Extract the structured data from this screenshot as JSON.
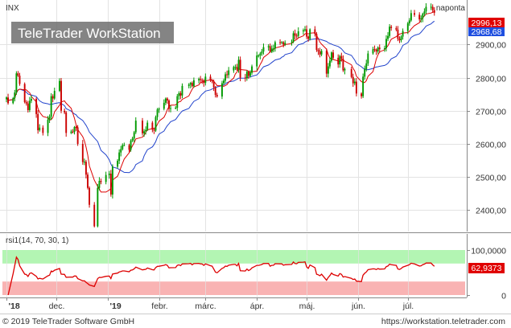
{
  "header": {
    "symbol": "INX",
    "interval": "naponta",
    "watermark_text": "TeleTrader WorkStation"
  },
  "footer": {
    "copyright": "© 2019 TeleTrader Software GmbH",
    "url": "https://workstation.teletrader.com"
  },
  "colors": {
    "up_candle": "#009900",
    "down_candle": "#cc0000",
    "ma_fast": "#dd0000",
    "ma_slow": "#2244cc",
    "rsi_line": "#dd0000",
    "rsi_overbought_band": "#b3f5b3",
    "rsi_oversold_band": "#f9b3b3",
    "last_price_badge": "#e00000",
    "slow_ma_badge": "#1f4fe0",
    "grid": "#e3e3e3"
  },
  "chart_data": [
    {
      "type": "candlestick",
      "symbol": "INX",
      "period": "naponta",
      "y_axis_ticks": [
        "2400,00",
        "2500,00",
        "2600,00",
        "2700,00",
        "2800,00",
        "2900,00"
      ],
      "y_tick_values": [
        2400,
        2500,
        2600,
        2700,
        2800,
        2900
      ],
      "ylim": [
        2340,
        3020
      ],
      "x_tick_labels": [
        "'18",
        "dec.",
        "'19",
        "febr.",
        "márc.",
        "ápr.",
        "máj.",
        "jún.",
        "júl."
      ],
      "x_tick_dates": [
        "2018-11-01",
        "2018-12-01",
        "2019-01-01",
        "2019-02-01",
        "2019-03-01",
        "2019-04-01",
        "2019-05-01",
        "2019-06-01",
        "2019-07-01"
      ],
      "x_range": [
        "2018-11-01",
        "2019-07-21"
      ],
      "overlays": [
        "moving average (fast)",
        "moving average (slow)"
      ],
      "last_value_badges": [
        {
          "text": "2996,13",
          "value": 2996.13,
          "kind": "last price"
        },
        {
          "text": "2968,68",
          "value": 2968.68,
          "kind": "slow average"
        }
      ],
      "grid": true,
      "close_series": [
        [
          "2018-11-01",
          2740
        ],
        [
          "2018-11-02",
          2723
        ],
        [
          "2018-11-05",
          2738
        ],
        [
          "2018-11-06",
          2755
        ],
        [
          "2018-11-07",
          2813
        ],
        [
          "2018-11-08",
          2806
        ],
        [
          "2018-11-09",
          2781
        ],
        [
          "2018-11-12",
          2726
        ],
        [
          "2018-11-13",
          2722
        ],
        [
          "2018-11-14",
          2702
        ],
        [
          "2018-11-15",
          2730
        ],
        [
          "2018-11-16",
          2736
        ],
        [
          "2018-11-19",
          2690
        ],
        [
          "2018-11-20",
          2641
        ],
        [
          "2018-11-21",
          2649
        ],
        [
          "2018-11-23",
          2633
        ],
        [
          "2018-11-26",
          2673
        ],
        [
          "2018-11-27",
          2682
        ],
        [
          "2018-11-28",
          2744
        ],
        [
          "2018-11-29",
          2737
        ],
        [
          "2018-11-30",
          2760
        ],
        [
          "2018-12-03",
          2790
        ],
        [
          "2018-12-04",
          2700
        ],
        [
          "2018-12-06",
          2695
        ],
        [
          "2018-12-07",
          2633
        ],
        [
          "2018-12-10",
          2637
        ],
        [
          "2018-12-11",
          2636
        ],
        [
          "2018-12-12",
          2651
        ],
        [
          "2018-12-13",
          2650
        ],
        [
          "2018-12-14",
          2600
        ],
        [
          "2018-12-17",
          2545
        ],
        [
          "2018-12-18",
          2546
        ],
        [
          "2018-12-19",
          2507
        ],
        [
          "2018-12-20",
          2467
        ],
        [
          "2018-12-21",
          2416
        ],
        [
          "2018-12-24",
          2351
        ],
        [
          "2018-12-26",
          2467
        ],
        [
          "2018-12-27",
          2488
        ],
        [
          "2018-12-28",
          2485
        ],
        [
          "2018-12-31",
          2506
        ],
        [
          "2019-01-02",
          2510
        ],
        [
          "2019-01-03",
          2447
        ],
        [
          "2019-01-04",
          2531
        ],
        [
          "2019-01-07",
          2549
        ],
        [
          "2019-01-08",
          2574
        ],
        [
          "2019-01-09",
          2584
        ],
        [
          "2019-01-10",
          2596
        ],
        [
          "2019-01-11",
          2596
        ],
        [
          "2019-01-14",
          2582
        ],
        [
          "2019-01-15",
          2610
        ],
        [
          "2019-01-16",
          2616
        ],
        [
          "2019-01-17",
          2635
        ],
        [
          "2019-01-18",
          2670
        ],
        [
          "2019-01-22",
          2632
        ],
        [
          "2019-01-23",
          2638
        ],
        [
          "2019-01-24",
          2642
        ],
        [
          "2019-01-25",
          2664
        ],
        [
          "2019-01-28",
          2643
        ],
        [
          "2019-01-29",
          2640
        ],
        [
          "2019-01-30",
          2681
        ],
        [
          "2019-01-31",
          2704
        ],
        [
          "2019-02-01",
          2706
        ],
        [
          "2019-02-04",
          2724
        ],
        [
          "2019-02-05",
          2737
        ],
        [
          "2019-02-06",
          2731
        ],
        [
          "2019-02-07",
          2706
        ],
        [
          "2019-02-08",
          2708
        ],
        [
          "2019-02-11",
          2709
        ],
        [
          "2019-02-12",
          2744
        ],
        [
          "2019-02-13",
          2753
        ],
        [
          "2019-02-14",
          2746
        ],
        [
          "2019-02-15",
          2775
        ],
        [
          "2019-02-19",
          2779
        ],
        [
          "2019-02-20",
          2784
        ],
        [
          "2019-02-21",
          2774
        ],
        [
          "2019-02-22",
          2792
        ],
        [
          "2019-02-25",
          2796
        ],
        [
          "2019-02-26",
          2793
        ],
        [
          "2019-02-27",
          2792
        ],
        [
          "2019-02-28",
          2784
        ],
        [
          "2019-03-01",
          2803
        ],
        [
          "2019-03-04",
          2792
        ],
        [
          "2019-03-05",
          2789
        ],
        [
          "2019-03-06",
          2771
        ],
        [
          "2019-03-07",
          2748
        ],
        [
          "2019-03-08",
          2743
        ],
        [
          "2019-03-11",
          2783
        ],
        [
          "2019-03-12",
          2791
        ],
        [
          "2019-03-13",
          2810
        ],
        [
          "2019-03-14",
          2808
        ],
        [
          "2019-03-15",
          2822
        ],
        [
          "2019-03-18",
          2832
        ],
        [
          "2019-03-19",
          2832
        ],
        [
          "2019-03-20",
          2824
        ],
        [
          "2019-03-21",
          2854
        ],
        [
          "2019-03-22",
          2800
        ],
        [
          "2019-03-25",
          2798
        ],
        [
          "2019-03-26",
          2818
        ],
        [
          "2019-03-27",
          2805
        ],
        [
          "2019-03-28",
          2815
        ],
        [
          "2019-03-29",
          2834
        ],
        [
          "2019-04-01",
          2867
        ],
        [
          "2019-04-02",
          2867
        ],
        [
          "2019-04-03",
          2873
        ],
        [
          "2019-04-04",
          2879
        ],
        [
          "2019-04-05",
          2892
        ],
        [
          "2019-04-08",
          2895
        ],
        [
          "2019-04-09",
          2878
        ],
        [
          "2019-04-10",
          2888
        ],
        [
          "2019-04-11",
          2888
        ],
        [
          "2019-04-12",
          2907
        ],
        [
          "2019-04-15",
          2906
        ],
        [
          "2019-04-16",
          2907
        ],
        [
          "2019-04-17",
          2900
        ],
        [
          "2019-04-18",
          2905
        ],
        [
          "2019-04-22",
          2908
        ],
        [
          "2019-04-23",
          2934
        ],
        [
          "2019-04-24",
          2927
        ],
        [
          "2019-04-25",
          2926
        ],
        [
          "2019-04-26",
          2940
        ],
        [
          "2019-04-29",
          2943
        ],
        [
          "2019-04-30",
          2946
        ],
        [
          "2019-05-01",
          2924
        ],
        [
          "2019-05-02",
          2917
        ],
        [
          "2019-05-03",
          2946
        ],
        [
          "2019-05-06",
          2932
        ],
        [
          "2019-05-07",
          2884
        ],
        [
          "2019-05-08",
          2879
        ],
        [
          "2019-05-09",
          2870
        ],
        [
          "2019-05-10",
          2881
        ],
        [
          "2019-05-13",
          2812
        ],
        [
          "2019-05-14",
          2834
        ],
        [
          "2019-05-15",
          2851
        ],
        [
          "2019-05-16",
          2876
        ],
        [
          "2019-05-17",
          2860
        ],
        [
          "2019-05-20",
          2840
        ],
        [
          "2019-05-21",
          2865
        ],
        [
          "2019-05-22",
          2857
        ],
        [
          "2019-05-23",
          2822
        ],
        [
          "2019-05-24",
          2826
        ],
        [
          "2019-05-28",
          2802
        ],
        [
          "2019-05-29",
          2783
        ],
        [
          "2019-05-30",
          2788
        ],
        [
          "2019-05-31",
          2752
        ],
        [
          "2019-06-03",
          2744
        ],
        [
          "2019-06-04",
          2803
        ],
        [
          "2019-06-05",
          2826
        ],
        [
          "2019-06-06",
          2843
        ],
        [
          "2019-06-07",
          2873
        ],
        [
          "2019-06-10",
          2886
        ],
        [
          "2019-06-11",
          2885
        ],
        [
          "2019-06-12",
          2879
        ],
        [
          "2019-06-13",
          2891
        ],
        [
          "2019-06-14",
          2886
        ],
        [
          "2019-06-17",
          2889
        ],
        [
          "2019-06-18",
          2917
        ],
        [
          "2019-06-19",
          2926
        ],
        [
          "2019-06-20",
          2954
        ],
        [
          "2019-06-21",
          2950
        ],
        [
          "2019-06-24",
          2945
        ],
        [
          "2019-06-25",
          2917
        ],
        [
          "2019-06-26",
          2913
        ],
        [
          "2019-06-27",
          2924
        ],
        [
          "2019-06-28",
          2941
        ],
        [
          "2019-07-01",
          2964
        ],
        [
          "2019-07-02",
          2973
        ],
        [
          "2019-07-03",
          2995
        ],
        [
          "2019-07-05",
          2990
        ],
        [
          "2019-07-08",
          2976
        ],
        [
          "2019-07-09",
          2979
        ],
        [
          "2019-07-10",
          2993
        ],
        [
          "2019-07-11",
          3000
        ],
        [
          "2019-07-12",
          3014
        ],
        [
          "2019-07-15",
          3014
        ],
        [
          "2019-07-16",
          3004
        ],
        [
          "2019-07-17",
          2996
        ]
      ]
    },
    {
      "type": "line",
      "title": "rsi1(14, 70, 30, 1)",
      "y_axis_ticks": [
        "100,0000",
        "0"
      ],
      "ylim": [
        0,
        100
      ],
      "bands": [
        {
          "from": 70,
          "to": 100,
          "color": "#b3f5b3"
        },
        {
          "from": 0,
          "to": 30,
          "color": "#f9b3b3"
        }
      ],
      "last_value_badge": {
        "text": "62,9373",
        "value": 62.9373
      },
      "grid": true
    }
  ]
}
